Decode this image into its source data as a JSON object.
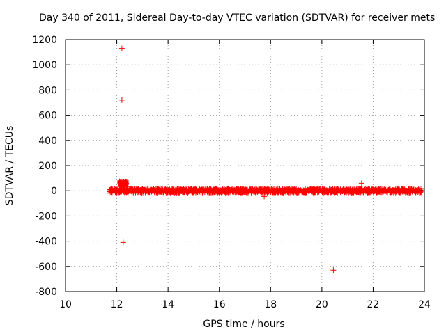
{
  "chart_data": {
    "type": "scatter",
    "title": "Day 340 of 2011, Sidereal Day-to-day VTEC variation (SDTVAR) for receiver mets",
    "xlabel": "GPS time / hours",
    "ylabel": "SDTVAR / TECUs",
    "xlim": [
      10,
      24
    ],
    "ylim": [
      -800,
      1200
    ],
    "xticks": [
      10,
      12,
      14,
      16,
      18,
      20,
      22,
      24
    ],
    "yticks": [
      -800,
      -600,
      -400,
      -200,
      0,
      200,
      400,
      600,
      800,
      1000,
      1200
    ],
    "grid": true,
    "marker": "+",
    "colors": {
      "series": "#ff0000",
      "grid": "#a0a0a0",
      "axis": "#000000"
    },
    "band": {
      "name": "dense near-zero band",
      "x_start": 11.7,
      "x_end": 23.9,
      "typical_range": [
        -20,
        20
      ]
    },
    "cluster": {
      "x": [
        12.1,
        12.4
      ],
      "y": [
        30,
        80
      ]
    },
    "outliers": [
      {
        "x": 12.2,
        "y": 1130
      },
      {
        "x": 12.2,
        "y": 720
      },
      {
        "x": 12.25,
        "y": -410
      },
      {
        "x": 17.75,
        "y": -45
      },
      {
        "x": 20.45,
        "y": -630
      },
      {
        "x": 21.55,
        "y": 60
      }
    ]
  }
}
